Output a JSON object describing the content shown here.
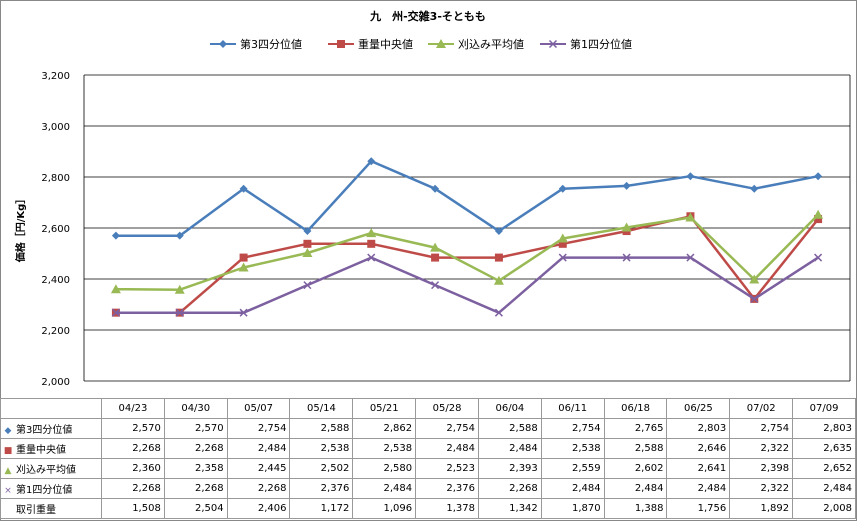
{
  "chart_data": {
    "type": "line",
    "title": "九　州-交雑3-そともも",
    "ylabel": "価格［円/Kg］",
    "ylim": [
      2000,
      3200
    ],
    "yticks": [
      "2,000",
      "2,200",
      "2,400",
      "2,600",
      "2,800",
      "3,000",
      "3,200"
    ],
    "ytick_values": [
      2000,
      2200,
      2400,
      2600,
      2800,
      3000,
      3200
    ],
    "categories": [
      "04/23",
      "04/30",
      "05/07",
      "05/14",
      "05/21",
      "05/28",
      "06/04",
      "06/11",
      "06/18",
      "06/25",
      "07/02",
      "07/09"
    ],
    "grid": true,
    "legend_position": "top",
    "series": [
      {
        "name": "第3四分位値",
        "color": "#4a7ebb",
        "marker": "diamond",
        "marker_symbol": "◆",
        "values": [
          2570,
          2570,
          2754,
          2588,
          2862,
          2754,
          2588,
          2754,
          2765,
          2803,
          2754,
          2803
        ],
        "display": [
          "2,570",
          "2,570",
          "2,754",
          "2,588",
          "2,862",
          "2,754",
          "2,588",
          "2,754",
          "2,765",
          "2,803",
          "2,754",
          "2,803"
        ]
      },
      {
        "name": "重量中央値",
        "color": "#be4b48",
        "marker": "square",
        "marker_symbol": "■",
        "values": [
          2268,
          2268,
          2484,
          2538,
          2538,
          2484,
          2484,
          2538,
          2588,
          2646,
          2322,
          2635
        ],
        "display": [
          "2,268",
          "2,268",
          "2,484",
          "2,538",
          "2,538",
          "2,484",
          "2,484",
          "2,538",
          "2,588",
          "2,646",
          "2,322",
          "2,635"
        ]
      },
      {
        "name": "刈込み平均値",
        "color": "#98b954",
        "marker": "triangle",
        "marker_symbol": "▲",
        "values": [
          2360,
          2358,
          2445,
          2502,
          2580,
          2523,
          2393,
          2559,
          2602,
          2641,
          2398,
          2652
        ],
        "display": [
          "2,360",
          "2,358",
          "2,445",
          "2,502",
          "2,580",
          "2,523",
          "2,393",
          "2,559",
          "2,602",
          "2,641",
          "2,398",
          "2,652"
        ]
      },
      {
        "name": "第1四分位値",
        "color": "#7d60a0",
        "marker": "x",
        "marker_symbol": "×",
        "values": [
          2268,
          2268,
          2268,
          2376,
          2484,
          2376,
          2268,
          2484,
          2484,
          2484,
          2322,
          2484
        ],
        "display": [
          "2,268",
          "2,268",
          "2,268",
          "2,376",
          "2,484",
          "2,376",
          "2,268",
          "2,484",
          "2,484",
          "2,484",
          "2,322",
          "2,484"
        ]
      }
    ],
    "extra_row": {
      "name": "取引重量",
      "display": [
        "1,508",
        "2,504",
        "2,406",
        "1,172",
        "1,096",
        "1,378",
        "1,342",
        "1,870",
        "1,388",
        "1,756",
        "1,892",
        "2,008"
      ]
    }
  }
}
